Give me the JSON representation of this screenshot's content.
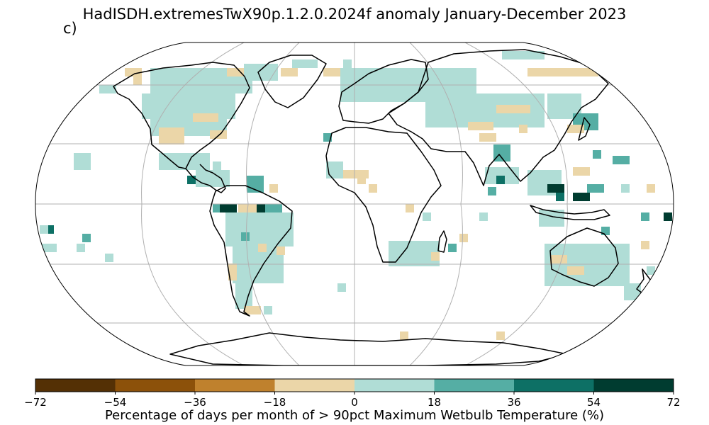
{
  "title": "HadISDH.extremesTwX90p.1.2.0.2024f anomaly January-December 2023",
  "panel_label": "c)",
  "projection": "Robinson",
  "gridlines": {
    "meridians_every_deg": 60,
    "parallels_every_deg": 30
  },
  "colorbar": {
    "label": "Percentage of days per month of > 90pct Maximum Wetbulb Temperature (%)",
    "ticks": [
      "−72",
      "−54",
      "−36",
      "−18",
      "0",
      "18",
      "36",
      "54",
      "72"
    ],
    "bins": [
      {
        "range": [
          -72,
          -54
        ],
        "color": "#543005"
      },
      {
        "range": [
          -54,
          -36
        ],
        "color": "#8c510a"
      },
      {
        "range": [
          -36,
          -18
        ],
        "color": "#bf812d"
      },
      {
        "range": [
          -18,
          0
        ],
        "color": "#ebd6a8"
      },
      {
        "range": [
          0,
          18
        ],
        "color": "#b0ddd6"
      },
      {
        "range": [
          18,
          36
        ],
        "color": "#55aea4"
      },
      {
        "range": [
          36,
          54
        ],
        "color": "#0d7065"
      },
      {
        "range": [
          54,
          72
        ],
        "color": "#003c30"
      }
    ]
  }
}
